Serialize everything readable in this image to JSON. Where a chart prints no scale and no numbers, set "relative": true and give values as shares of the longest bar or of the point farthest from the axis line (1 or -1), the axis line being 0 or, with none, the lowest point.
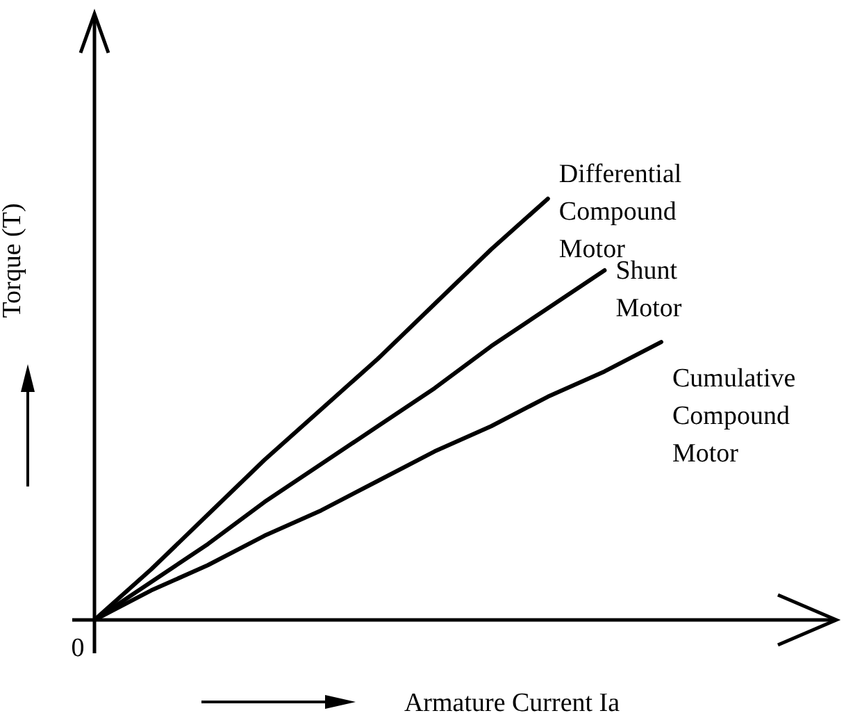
{
  "chart_data": {
    "type": "line",
    "relative": true,
    "xlabel": "Armature Current Ia",
    "ylabel": "Torque (T)",
    "annotations": [
      "0"
    ],
    "categories": [
      null,
      null,
      null,
      null,
      null,
      null,
      null,
      null,
      null,
      null,
      null
    ],
    "series": [
      {
        "name": "Differential Compound Motor",
        "color": "#000000",
        "values": [
          0,
          0.12,
          0.25,
          0.38,
          0.5,
          0.62,
          0.75,
          0.88,
          1,
          null,
          null
        ]
      },
      {
        "name": "Shunt Motor",
        "color": "#000000",
        "values": [
          0,
          0.09,
          0.18,
          0.28,
          0.37,
          0.46,
          0.55,
          0.65,
          0.74,
          0.83,
          null
        ]
      },
      {
        "name": "Cumulative Compound Motor",
        "color": "#000000",
        "values": [
          0,
          0.07,
          0.13,
          0.2,
          0.26,
          0.33,
          0.4,
          0.46,
          0.53,
          0.59,
          0.66
        ]
      }
    ]
  }
}
